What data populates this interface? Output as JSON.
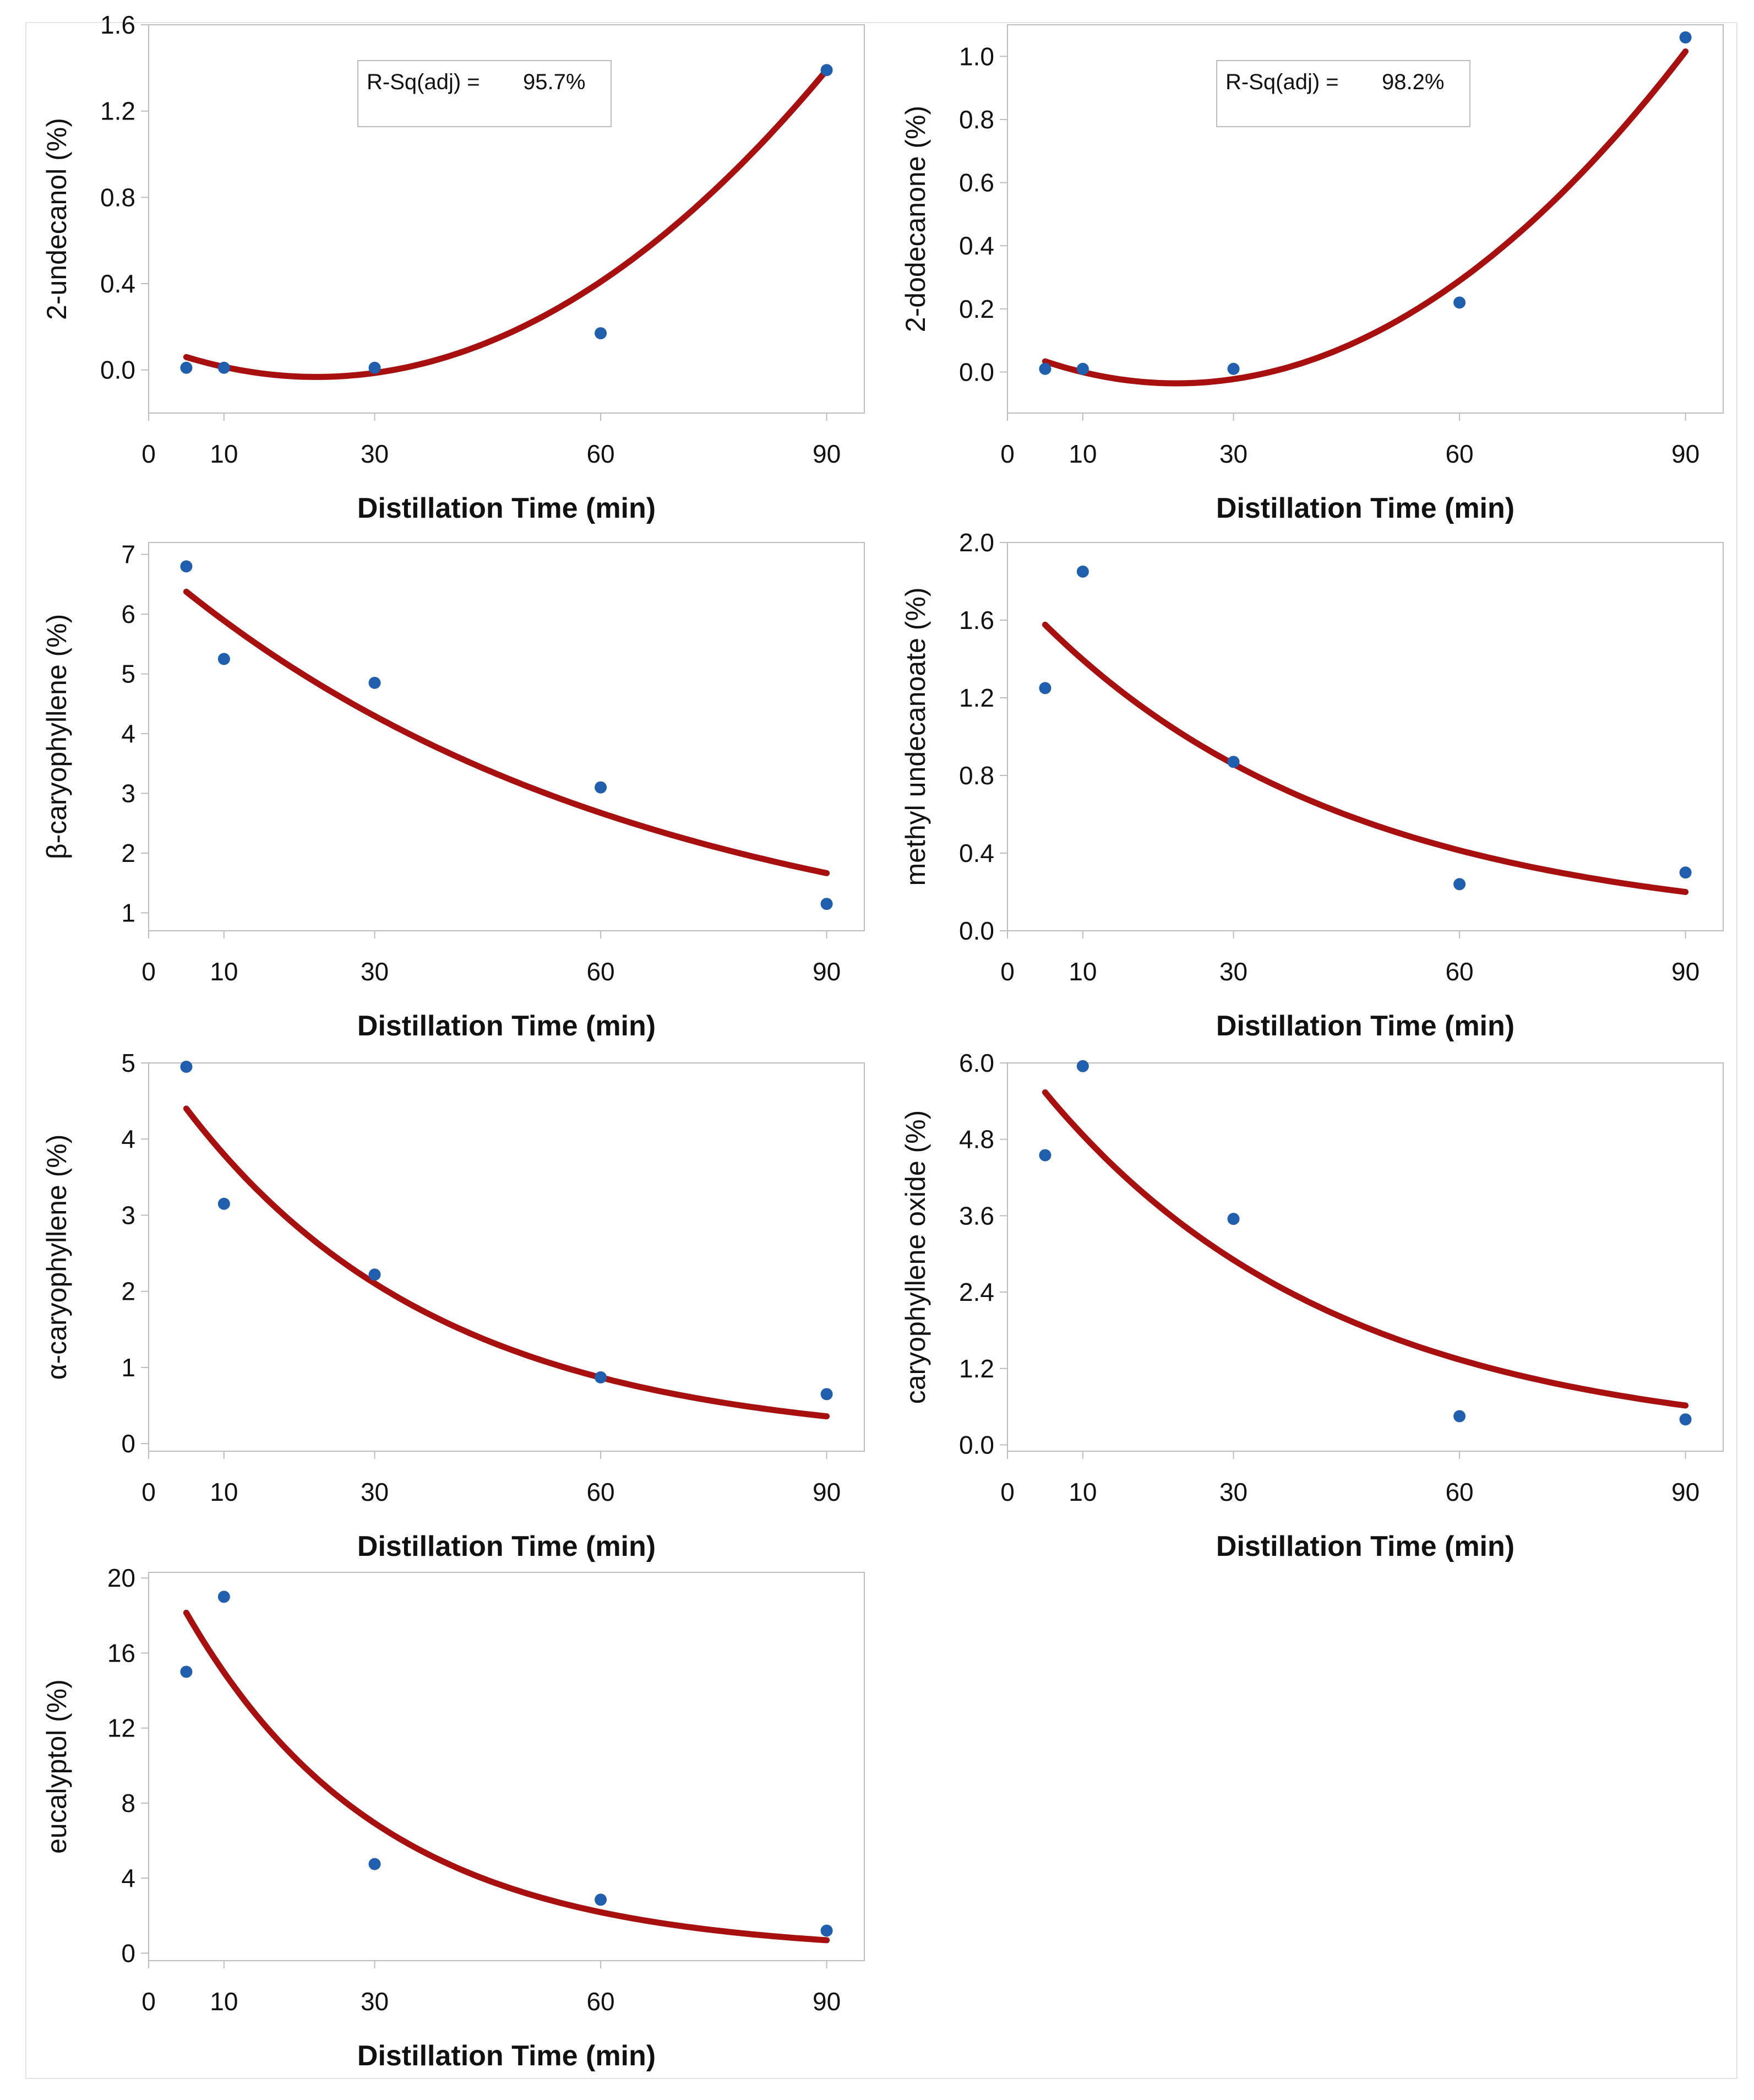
{
  "figure": {
    "colors": {
      "points": "#1f5fad",
      "curve": "#a80f0f",
      "axis": "#bdbdbd",
      "text": "#111111"
    }
  },
  "chart_data": [
    {
      "type": "scatter",
      "id": "undecanol",
      "fit": "quadratic",
      "ylabel": "2-undecanol (%)",
      "xlabel": "Distillation Time (min)",
      "xlim": [
        0,
        95
      ],
      "xticks": [
        0,
        10,
        30,
        60,
        90
      ],
      "ylim": [
        -0.2,
        1.6
      ],
      "yticks": [
        "0.0",
        "0.4",
        "0.8",
        "1.2",
        "1.6"
      ],
      "annotation": {
        "label": "R-Sq(adj) =",
        "value": "95.7%"
      },
      "x": [
        5,
        10,
        30,
        60,
        90
      ],
      "y": [
        0.01,
        0.01,
        0.01,
        0.17,
        1.39
      ],
      "curve": {
        "model": "poly",
        "coef": [
          0.121,
          -0.0138,
          0.00031
        ],
        "x_range": [
          5,
          90
        ]
      }
    },
    {
      "type": "scatter",
      "id": "dodecanone",
      "fit": "quadratic",
      "ylabel": "2-dodecanone (%)",
      "xlabel": "Distillation Time (min)",
      "xlim": [
        0,
        95
      ],
      "xticks": [
        0,
        10,
        30,
        60,
        90
      ],
      "ylim": [
        -0.13,
        1.1
      ],
      "yticks": [
        "0.0",
        "0.2",
        "0.4",
        "0.6",
        "0.8",
        "1.0"
      ],
      "annotation": {
        "label": "R-Sq(adj) =",
        "value": "98.2%"
      },
      "x": [
        5,
        10,
        30,
        60,
        90
      ],
      "y": [
        0.01,
        0.01,
        0.01,
        0.22,
        1.06
      ],
      "curve": {
        "model": "poly",
        "coef": [
          0.0795,
          -0.0103,
          0.00023
        ],
        "x_range": [
          5,
          90
        ]
      }
    },
    {
      "type": "scatter",
      "id": "beta-caryophyllene",
      "fit": "exponential",
      "ylabel": "β-caryophyllene (%)",
      "xlabel": "Distillation Time (min)",
      "xlim": [
        0,
        95
      ],
      "xticks": [
        0,
        10,
        30,
        60,
        90
      ],
      "ylim": [
        0.7,
        7.2
      ],
      "yticks": [
        "1",
        "2",
        "3",
        "4",
        "5",
        "6",
        "7"
      ],
      "x": [
        5,
        10,
        30,
        60,
        90
      ],
      "y": [
        6.8,
        5.25,
        4.85,
        3.1,
        1.15
      ],
      "curve": {
        "model": "exp",
        "a": 6.9,
        "b": 0.0158,
        "x_range": [
          5,
          90
        ]
      }
    },
    {
      "type": "scatter",
      "id": "methyl-undecanoate",
      "fit": "exponential",
      "ylabel": "methyl undecanoate (%)",
      "xlabel": "Distillation Time (min)",
      "xlim": [
        0,
        95
      ],
      "xticks": [
        0,
        10,
        30,
        60,
        90
      ],
      "ylim": [
        0,
        2.0
      ],
      "yticks": [
        "0.0",
        "0.4",
        "0.8",
        "1.2",
        "1.6",
        "2.0"
      ],
      "x": [
        5,
        10,
        30,
        60,
        90
      ],
      "y": [
        1.25,
        1.85,
        0.87,
        0.24,
        0.3
      ],
      "curve": {
        "model": "exp",
        "a": 1.78,
        "b": 0.0243,
        "x_range": [
          5,
          90
        ]
      }
    },
    {
      "type": "scatter",
      "id": "alpha-caryophyllene",
      "fit": "exponential",
      "ylabel": "α-caryophyllene (%)",
      "xlabel": "Distillation Time (min)",
      "xlim": [
        0,
        95
      ],
      "xticks": [
        0,
        10,
        30,
        60,
        90
      ],
      "ylim": [
        -0.1,
        5.0
      ],
      "yticks": [
        "0",
        "1",
        "2",
        "3",
        "4",
        "5"
      ],
      "x": [
        5,
        10,
        30,
        60,
        90
      ],
      "y": [
        4.95,
        3.15,
        2.22,
        0.87,
        0.65
      ],
      "curve": {
        "model": "exp",
        "a": 5.1,
        "b": 0.0295,
        "x_range": [
          5,
          90
        ]
      }
    },
    {
      "type": "scatter",
      "id": "caryophyllene-oxide",
      "fit": "exponential",
      "ylabel": "caryophyllene oxide (%)",
      "xlabel": "Distillation Time (min)",
      "xlim": [
        0,
        95
      ],
      "xticks": [
        0,
        10,
        30,
        60,
        90
      ],
      "ylim": [
        -0.1,
        6.0
      ],
      "yticks": [
        "0.0",
        "1.2",
        "2.4",
        "3.6",
        "4.8",
        "6.0"
      ],
      "x": [
        5,
        10,
        30,
        60,
        90
      ],
      "y": [
        4.55,
        5.95,
        3.55,
        0.45,
        0.4
      ],
      "curve": {
        "model": "exp",
        "a": 6.3,
        "b": 0.0258,
        "x_range": [
          5,
          90
        ]
      }
    },
    {
      "type": "scatter",
      "id": "eucalyptol",
      "fit": "exponential",
      "ylabel": "eucalyptol (%)",
      "xlabel": "Distillation Time (min)",
      "xlim": [
        0,
        95
      ],
      "xticks": [
        0,
        10,
        30,
        60,
        90
      ],
      "ylim": [
        -0.4,
        20.3
      ],
      "yticks": [
        "0",
        "4",
        "8",
        "12",
        "16",
        "20"
      ],
      "x": [
        5,
        10,
        30,
        60,
        90
      ],
      "y": [
        15.0,
        19.0,
        4.75,
        2.85,
        1.2
      ],
      "curve": {
        "model": "exp",
        "a": 22.0,
        "b": 0.0385,
        "x_range": [
          5,
          90
        ]
      }
    }
  ]
}
